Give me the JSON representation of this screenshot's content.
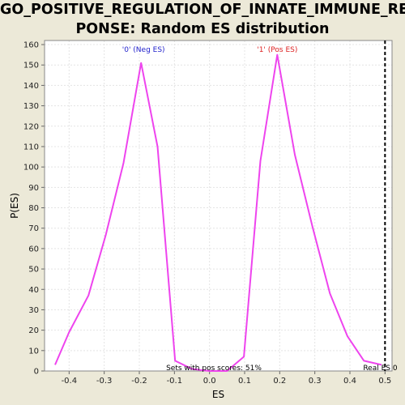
{
  "title": {
    "line1": "GO_POSITIVE_REGULATION_OF_INNATE_IMMUNE_RES",
    "line2": "PONSE: Random ES distribution"
  },
  "chart_data": {
    "type": "line",
    "xlabel": "ES",
    "ylabel": "P(ES)",
    "xlim": [
      -0.47,
      0.52
    ],
    "ylim": [
      0,
      162
    ],
    "xticks": [
      "-0.4",
      "-0.3",
      "-0.2",
      "-0.1",
      "0.0",
      "0.1",
      "0.2",
      "0.3",
      "0.4",
      "0.5"
    ],
    "yticks": [
      "0",
      "10",
      "20",
      "30",
      "40",
      "50",
      "60",
      "70",
      "80",
      "90",
      "100",
      "110",
      "120",
      "130",
      "140",
      "150",
      "160"
    ],
    "grid": true,
    "series": [
      {
        "name": "'0' (Neg ES)",
        "color": "#EE44EE",
        "points": [
          [
            -0.44,
            3
          ],
          [
            -0.4,
            19
          ],
          [
            -0.345,
            37
          ],
          [
            -0.295,
            67
          ],
          [
            -0.245,
            102
          ],
          [
            -0.195,
            151
          ],
          [
            -0.148,
            110
          ],
          [
            -0.098,
            5
          ],
          [
            -0.05,
            1
          ],
          [
            0.0,
            0
          ]
        ]
      },
      {
        "name": "'1' (Pos ES)",
        "color": "#EE44EE",
        "points": [
          [
            0.0,
            0
          ],
          [
            0.05,
            0
          ],
          [
            0.098,
            7
          ],
          [
            0.145,
            103
          ],
          [
            0.193,
            155
          ],
          [
            0.243,
            106
          ],
          [
            0.293,
            71
          ],
          [
            0.343,
            38
          ],
          [
            0.393,
            17
          ],
          [
            0.44,
            5
          ],
          [
            0.49,
            3
          ]
        ]
      }
    ],
    "annotations": {
      "neg_label": "'0' (Neg ES)",
      "neg_color": "#2222CC",
      "pos_label": "'1' (Pos ES)",
      "pos_color": "#DD2222",
      "sets_text": "Sets with pos scores: 51%",
      "real_es_label": "Real ES 0",
      "real_es_value": 0.5
    }
  }
}
